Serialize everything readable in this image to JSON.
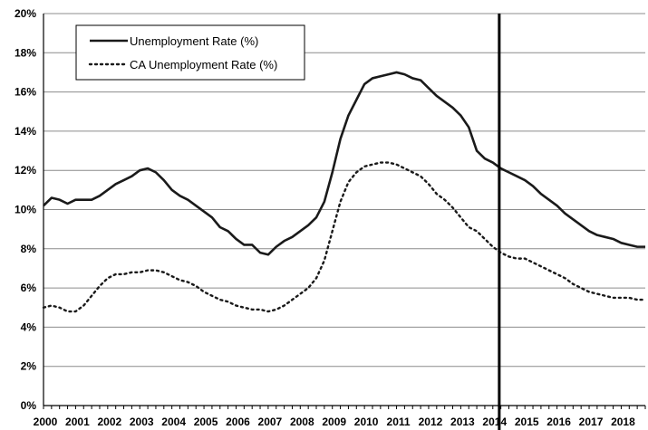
{
  "chart_data": {
    "type": "line",
    "title": "",
    "xlabel": "",
    "ylabel": "",
    "xlim": [
      2000,
      2018.75
    ],
    "ylim": [
      0,
      20
    ],
    "y_ticks": [
      "0%",
      "2%",
      "4%",
      "6%",
      "8%",
      "10%",
      "12%",
      "14%",
      "16%",
      "18%",
      "20%"
    ],
    "x_ticks": [
      "2000",
      "2001",
      "2002",
      "2003",
      "2004",
      "2005",
      "2006",
      "2007",
      "2008",
      "2009",
      "2010",
      "2011",
      "2012",
      "2013",
      "2014",
      "2015",
      "2016",
      "2017",
      "2018"
    ],
    "grid": "horizontal",
    "legend_position": "top-left",
    "vertical_marker_x": 2014.2,
    "series": [
      {
        "name": "Unemployment Rate (%)",
        "style": "solid",
        "color": "#1a1a1a",
        "x": [
          2000,
          2000.25,
          2000.5,
          2000.75,
          2001,
          2001.25,
          2001.5,
          2001.75,
          2002,
          2002.25,
          2002.5,
          2002.75,
          2003,
          2003.25,
          2003.5,
          2003.75,
          2004,
          2004.25,
          2004.5,
          2004.75,
          2005,
          2005.25,
          2005.5,
          2005.75,
          2006,
          2006.25,
          2006.5,
          2006.75,
          2007,
          2007.25,
          2007.5,
          2007.75,
          2008,
          2008.25,
          2008.5,
          2008.75,
          2009,
          2009.25,
          2009.5,
          2009.75,
          2010,
          2010.25,
          2010.5,
          2010.75,
          2011,
          2011.25,
          2011.5,
          2011.75,
          2012,
          2012.25,
          2012.5,
          2012.75,
          2013,
          2013.25,
          2013.5,
          2013.75,
          2014,
          2014.25,
          2014.5,
          2014.75,
          2015,
          2015.25,
          2015.5,
          2015.75,
          2016,
          2016.25,
          2016.5,
          2016.75,
          2017,
          2017.25,
          2017.5,
          2017.75,
          2018,
          2018.25,
          2018.5,
          2018.75
        ],
        "values": [
          10.2,
          10.6,
          10.5,
          10.3,
          10.5,
          10.5,
          10.5,
          10.7,
          11.0,
          11.3,
          11.5,
          11.7,
          12.0,
          12.1,
          11.9,
          11.5,
          11.0,
          10.7,
          10.5,
          10.2,
          9.9,
          9.6,
          9.1,
          8.9,
          8.5,
          8.2,
          8.2,
          7.8,
          7.7,
          8.1,
          8.4,
          8.6,
          8.9,
          9.2,
          9.6,
          10.4,
          11.9,
          13.6,
          14.8,
          15.6,
          16.4,
          16.7,
          16.8,
          16.9,
          17.0,
          16.9,
          16.7,
          16.6,
          16.2,
          15.8,
          15.5,
          15.2,
          14.8,
          14.2,
          13.0,
          12.6,
          12.4,
          12.1,
          11.9,
          11.7,
          11.5,
          11.2,
          10.8,
          10.5,
          10.2,
          9.8,
          9.5,
          9.2,
          8.9,
          8.7,
          8.6,
          8.5,
          8.3,
          8.2,
          8.1,
          8.1
        ]
      },
      {
        "name": "CA Unemployment Rate (%)",
        "style": "dotted",
        "color": "#1a1a1a",
        "x": [
          2000,
          2000.25,
          2000.5,
          2000.75,
          2001,
          2001.25,
          2001.5,
          2001.75,
          2002,
          2002.25,
          2002.5,
          2002.75,
          2003,
          2003.25,
          2003.5,
          2003.75,
          2004,
          2004.25,
          2004.5,
          2004.75,
          2005,
          2005.25,
          2005.5,
          2005.75,
          2006,
          2006.25,
          2006.5,
          2006.75,
          2007,
          2007.25,
          2007.5,
          2007.75,
          2008,
          2008.25,
          2008.5,
          2008.75,
          2009,
          2009.25,
          2009.5,
          2009.75,
          2010,
          2010.25,
          2010.5,
          2010.75,
          2011,
          2011.25,
          2011.5,
          2011.75,
          2012,
          2012.25,
          2012.5,
          2012.75,
          2013,
          2013.25,
          2013.5,
          2013.75,
          2014,
          2014.25,
          2014.5,
          2014.75,
          2015,
          2015.25,
          2015.5,
          2015.75,
          2016,
          2016.25,
          2016.5,
          2016.75,
          2017,
          2017.25,
          2017.5,
          2017.75,
          2018,
          2018.25,
          2018.5,
          2018.75
        ],
        "values": [
          5.0,
          5.1,
          5.0,
          4.8,
          4.8,
          5.1,
          5.6,
          6.1,
          6.5,
          6.7,
          6.7,
          6.8,
          6.8,
          6.9,
          6.9,
          6.8,
          6.6,
          6.4,
          6.3,
          6.1,
          5.8,
          5.6,
          5.4,
          5.3,
          5.1,
          5.0,
          4.9,
          4.9,
          4.8,
          4.9,
          5.1,
          5.4,
          5.7,
          6.0,
          6.5,
          7.4,
          8.9,
          10.4,
          11.4,
          11.9,
          12.2,
          12.3,
          12.4,
          12.4,
          12.3,
          12.1,
          11.9,
          11.7,
          11.3,
          10.8,
          10.5,
          10.1,
          9.6,
          9.1,
          8.9,
          8.5,
          8.1,
          7.8,
          7.6,
          7.5,
          7.5,
          7.3,
          7.1,
          6.9,
          6.7,
          6.5,
          6.2,
          6.0,
          5.8,
          5.7,
          5.6,
          5.5,
          5.5,
          5.5,
          5.4,
          5.4
        ]
      }
    ]
  }
}
